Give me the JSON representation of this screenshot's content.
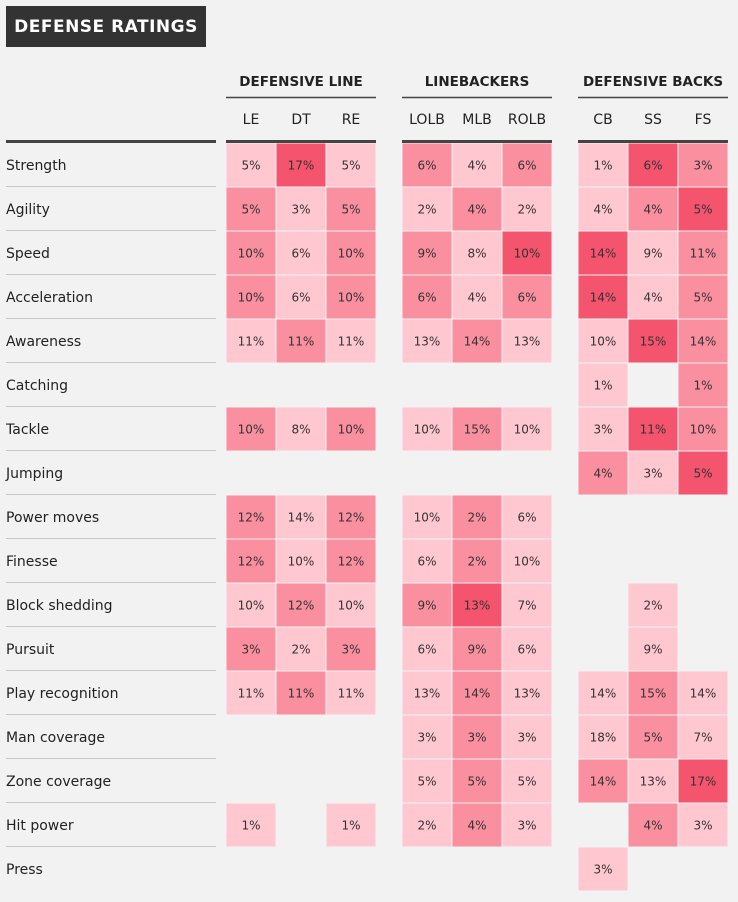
{
  "title": "DEFENSE RATINGS",
  "chart_data": {
    "type": "heatmap",
    "title": "DEFENSE RATINGS",
    "groups": [
      {
        "name": "DEFENSIVE LINE",
        "positions": [
          "LE",
          "DT",
          "RE"
        ]
      },
      {
        "name": "LINEBACKERS",
        "positions": [
          "LOLB",
          "MLB",
          "ROLB"
        ]
      },
      {
        "name": "DEFENSIVE BACKS",
        "positions": [
          "CB",
          "SS",
          "FS"
        ]
      }
    ],
    "rows": [
      "Strength",
      "Agility",
      "Speed",
      "Acceleration",
      "Awareness",
      "Catching",
      "Tackle",
      "Jumping",
      "Power moves",
      "Finesse",
      "Block shedding",
      "Pursuit",
      "Play recognition",
      "Man coverage",
      "Zone coverage",
      "Hit power",
      "Press"
    ],
    "values": [
      [
        5,
        17,
        5,
        6,
        4,
        6,
        1,
        6,
        3
      ],
      [
        5,
        3,
        5,
        2,
        4,
        2,
        4,
        4,
        5
      ],
      [
        10,
        6,
        10,
        9,
        8,
        10,
        14,
        9,
        11
      ],
      [
        10,
        6,
        10,
        6,
        4,
        6,
        14,
        4,
        5
      ],
      [
        11,
        11,
        11,
        13,
        14,
        13,
        10,
        15,
        14
      ],
      [
        null,
        null,
        null,
        null,
        null,
        null,
        1,
        null,
        1
      ],
      [
        10,
        8,
        10,
        10,
        15,
        10,
        3,
        11,
        10
      ],
      [
        null,
        null,
        null,
        null,
        null,
        null,
        4,
        3,
        5
      ],
      [
        12,
        14,
        12,
        10,
        2,
        6,
        null,
        null,
        null
      ],
      [
        12,
        10,
        12,
        6,
        2,
        10,
        null,
        null,
        null
      ],
      [
        10,
        12,
        10,
        9,
        13,
        7,
        null,
        2,
        null
      ],
      [
        3,
        2,
        3,
        6,
        9,
        6,
        null,
        9,
        null
      ],
      [
        11,
        11,
        11,
        13,
        14,
        13,
        14,
        15,
        14
      ],
      [
        null,
        null,
        null,
        3,
        3,
        3,
        18,
        5,
        7
      ],
      [
        null,
        null,
        null,
        5,
        5,
        5,
        14,
        13,
        17
      ],
      [
        1,
        null,
        1,
        2,
        4,
        3,
        null,
        4,
        3
      ],
      [
        null,
        null,
        null,
        null,
        null,
        null,
        3,
        null,
        null
      ]
    ],
    "shade_levels": [
      [
        1,
        3,
        1,
        2,
        1,
        2,
        1,
        3,
        2
      ],
      [
        2,
        1,
        2,
        1,
        2,
        1,
        1,
        2,
        3
      ],
      [
        2,
        1,
        2,
        2,
        1,
        3,
        3,
        1,
        2
      ],
      [
        2,
        1,
        2,
        2,
        1,
        2,
        3,
        1,
        2
      ],
      [
        1,
        2,
        1,
        1,
        2,
        1,
        1,
        3,
        2
      ],
      [
        null,
        null,
        null,
        null,
        null,
        null,
        1,
        null,
        2
      ],
      [
        2,
        1,
        2,
        1,
        2,
        1,
        1,
        3,
        2
      ],
      [
        null,
        null,
        null,
        null,
        null,
        null,
        2,
        1,
        3
      ],
      [
        2,
        1,
        2,
        1,
        2,
        1,
        null,
        null,
        null
      ],
      [
        2,
        1,
        2,
        1,
        2,
        1,
        null,
        null,
        null
      ],
      [
        1,
        2,
        1,
        2,
        3,
        1,
        null,
        1,
        null
      ],
      [
        2,
        1,
        2,
        1,
        2,
        1,
        null,
        1,
        null
      ],
      [
        1,
        2,
        1,
        1,
        2,
        1,
        1,
        2,
        1
      ],
      [
        null,
        null,
        null,
        1,
        2,
        1,
        1,
        2,
        1
      ],
      [
        null,
        null,
        null,
        1,
        2,
        1,
        2,
        1,
        3
      ],
      [
        1,
        null,
        1,
        1,
        2,
        1,
        null,
        2,
        1
      ],
      [
        null,
        null,
        null,
        null,
        null,
        null,
        1,
        null,
        null
      ]
    ],
    "colors": {
      "level1": "#ffc8d1",
      "level2": "#fa8fa0",
      "level3": "#f4546e",
      "background": "#f2f2f2",
      "title_bg": "#333333",
      "rule": "#444444",
      "row_rule": "#c8c8c8"
    },
    "value_suffix": "%"
  }
}
